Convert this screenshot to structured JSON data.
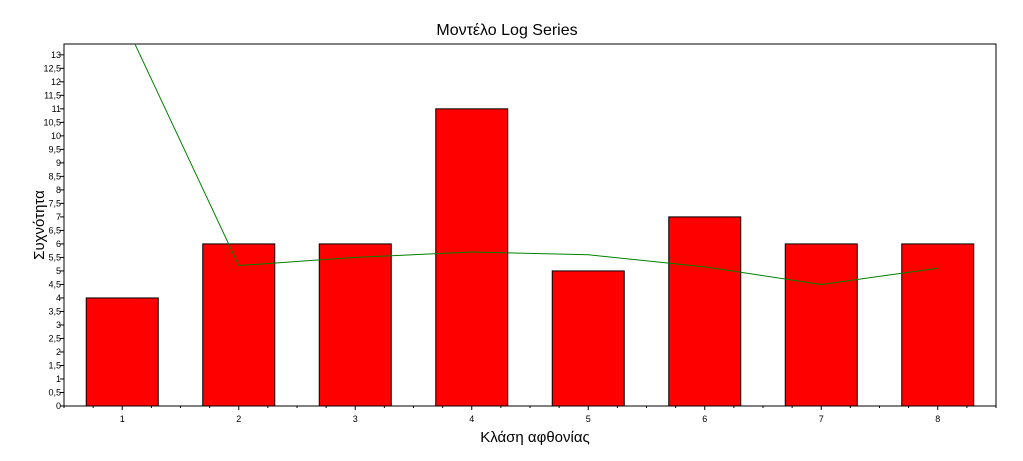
{
  "chart_data": {
    "type": "bar",
    "title": "Μοντέλο Log Series",
    "xlabel": "Κλάση αφθονίας",
    "ylabel": "Συχνότητα",
    "categories": [
      "1",
      "2",
      "3",
      "4",
      "5",
      "6",
      "7",
      "8"
    ],
    "series": [
      {
        "type": "bar",
        "values": [
          4,
          6,
          6,
          11,
          5,
          7,
          6,
          6
        ],
        "color": "#ff0000"
      },
      {
        "type": "line",
        "values": [
          14.4,
          5.2,
          5.5,
          5.7,
          5.6,
          5.15,
          4.5,
          5.1
        ],
        "color": "#008000"
      }
    ],
    "ylim": [
      0,
      13.4
    ],
    "yticks": [
      "0",
      "0,5",
      "1",
      "1,5",
      "2",
      "2,5",
      "3",
      "3,5",
      "4",
      "4,5",
      "5",
      "5,5",
      "6",
      "6,5",
      "7",
      "7,5",
      "8",
      "8,5",
      "9",
      "9,5",
      "10",
      "10,5",
      "11",
      "11,5",
      "12",
      "12,5",
      "13"
    ],
    "grid": false,
    "legend": "none"
  }
}
